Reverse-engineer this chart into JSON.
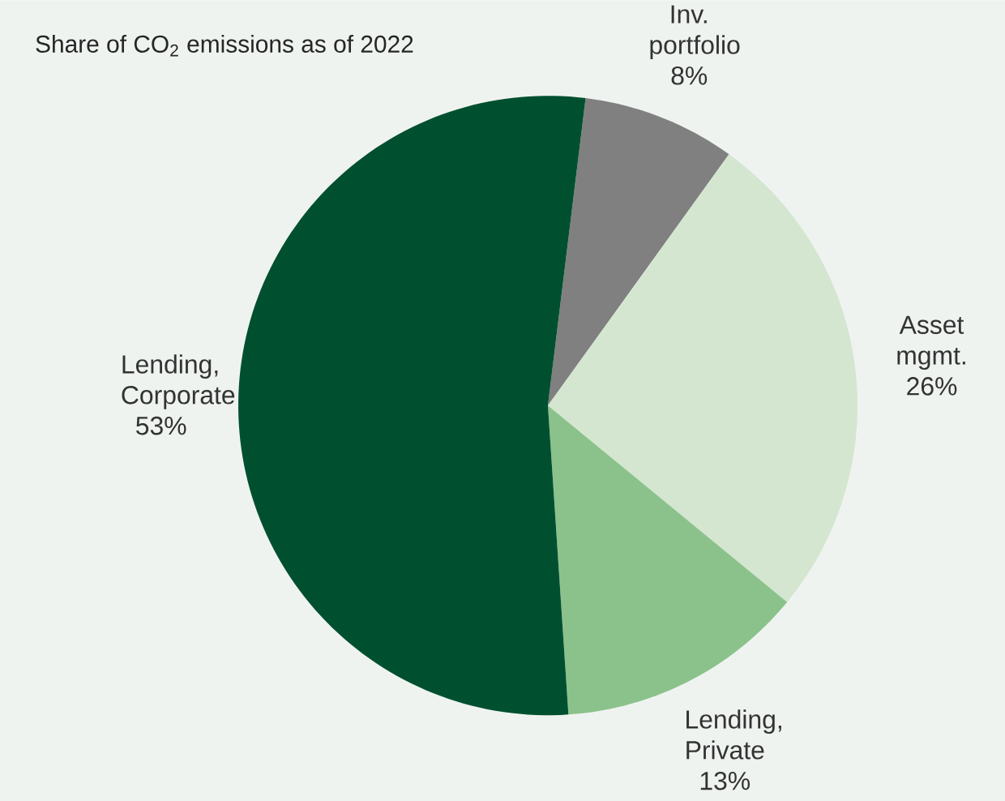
{
  "chart_data": {
    "type": "pie",
    "title": "Share of CO$_{2}$ emissions as of 2022",
    "categories": [
      "Inv. portfolio",
      "Asset mgmt.",
      "Lending, Private",
      "Lending, Corporate"
    ],
    "values": [
      8,
      26,
      13,
      53
    ],
    "colors": [
      "#808080",
      "#d4e6d0",
      "#8bc28b",
      "#005030"
    ],
    "value_labels": [
      "8%",
      "26%",
      "13%",
      "53%"
    ]
  }
}
